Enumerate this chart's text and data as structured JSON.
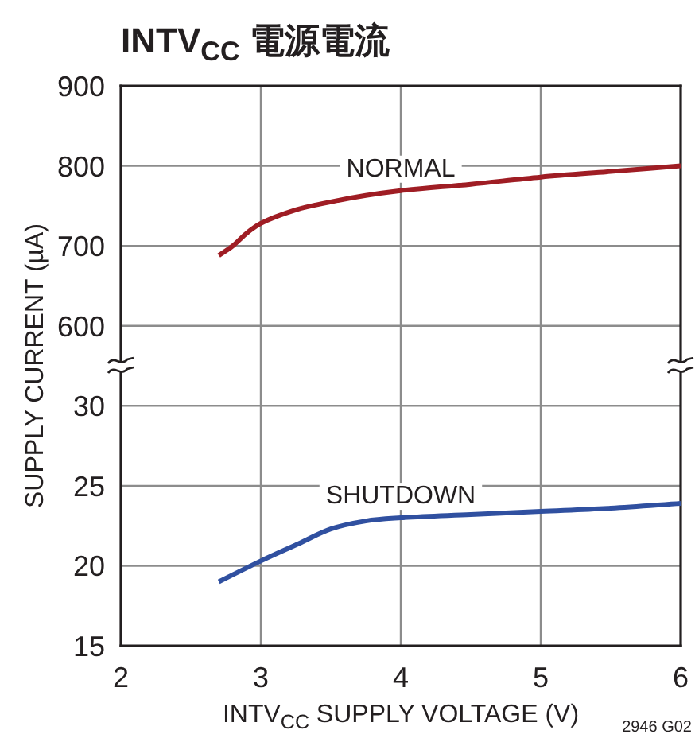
{
  "chart_data": [
    {
      "type": "line",
      "title": "INTV$_{CC}$ 電源電流",
      "ylabel": "SUPPLY CURRENT (µA)",
      "x": [
        2.7,
        2.8,
        2.9,
        3.0,
        3.25,
        3.5,
        3.75,
        4.0,
        4.5,
        5.0,
        5.5,
        6.0
      ],
      "series": [
        {
          "name": "NORMAL",
          "color": "#9f1d24",
          "values": [
            688,
            700,
            716,
            728,
            745,
            755,
            763,
            769,
            777,
            786,
            793,
            800
          ]
        }
      ],
      "xlim": [
        2,
        6
      ],
      "xticks": [
        2,
        3,
        4,
        5,
        6
      ],
      "ylim": [
        550,
        900
      ],
      "yticks": [
        600,
        700,
        800,
        900
      ],
      "grid": true,
      "tick_labels": "y"
    },
    {
      "type": "line",
      "xlabel": "INTV$_{CC}$ SUPPLY VOLTAGE (V)",
      "annotations": [
        "2946 G02"
      ],
      "x": [
        2.7,
        3.0,
        3.25,
        3.5,
        3.75,
        4.0,
        4.5,
        5.0,
        5.5,
        6.0
      ],
      "series": [
        {
          "name": "SHUTDOWN",
          "color": "#3050a0",
          "values": [
            19.0,
            20.3,
            21.3,
            22.3,
            22.8,
            23.0,
            23.2,
            23.4,
            23.6,
            23.9
          ]
        }
      ],
      "xlim": [
        2,
        6
      ],
      "xticks": [
        2,
        3,
        4,
        5,
        6
      ],
      "ylim": [
        15,
        32.5
      ],
      "yticks": [
        15,
        20,
        25,
        30
      ],
      "grid": true
    }
  ]
}
